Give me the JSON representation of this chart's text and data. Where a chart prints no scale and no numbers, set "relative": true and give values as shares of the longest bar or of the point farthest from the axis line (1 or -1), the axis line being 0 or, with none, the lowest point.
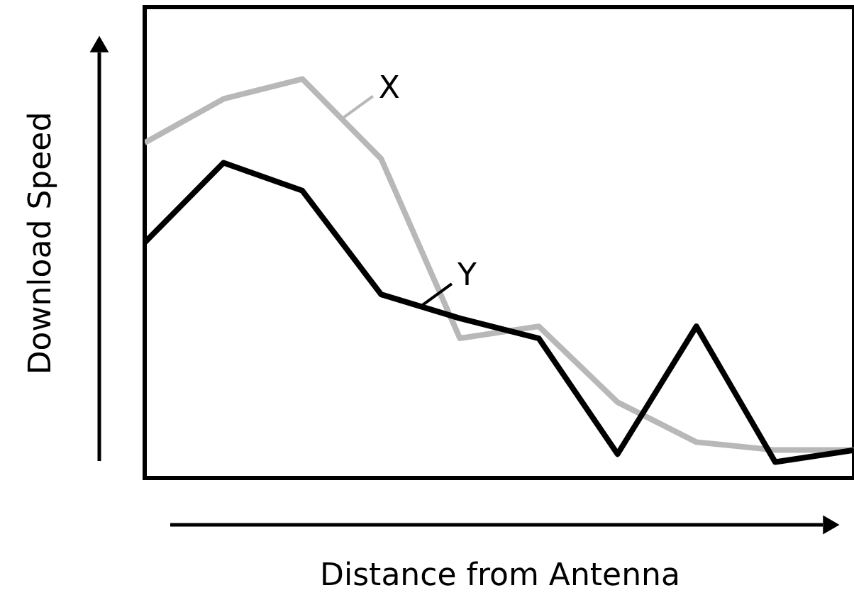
{
  "chart_data": {
    "type": "line",
    "relative": true,
    "xlabel": "Distance from Antenna",
    "ylabel": "Download Speed",
    "tick_labels": false,
    "grid": false,
    "legend": "top",
    "categories": [
      null,
      null,
      null,
      null,
      null,
      null,
      null,
      null,
      null,
      null
    ],
    "series": [
      {
        "name": "X",
        "color": "#b8b8b8",
        "values": [
          0.84,
          0.95,
          1.0,
          0.8,
          0.35,
          0.38,
          0.19,
          0.09,
          0.07,
          0.07
        ]
      },
      {
        "name": "Y",
        "color": "#000000",
        "values": [
          0.59,
          0.79,
          0.72,
          0.46,
          0.4,
          0.35,
          0.06,
          0.38,
          0.04,
          0.07
        ]
      }
    ]
  }
}
